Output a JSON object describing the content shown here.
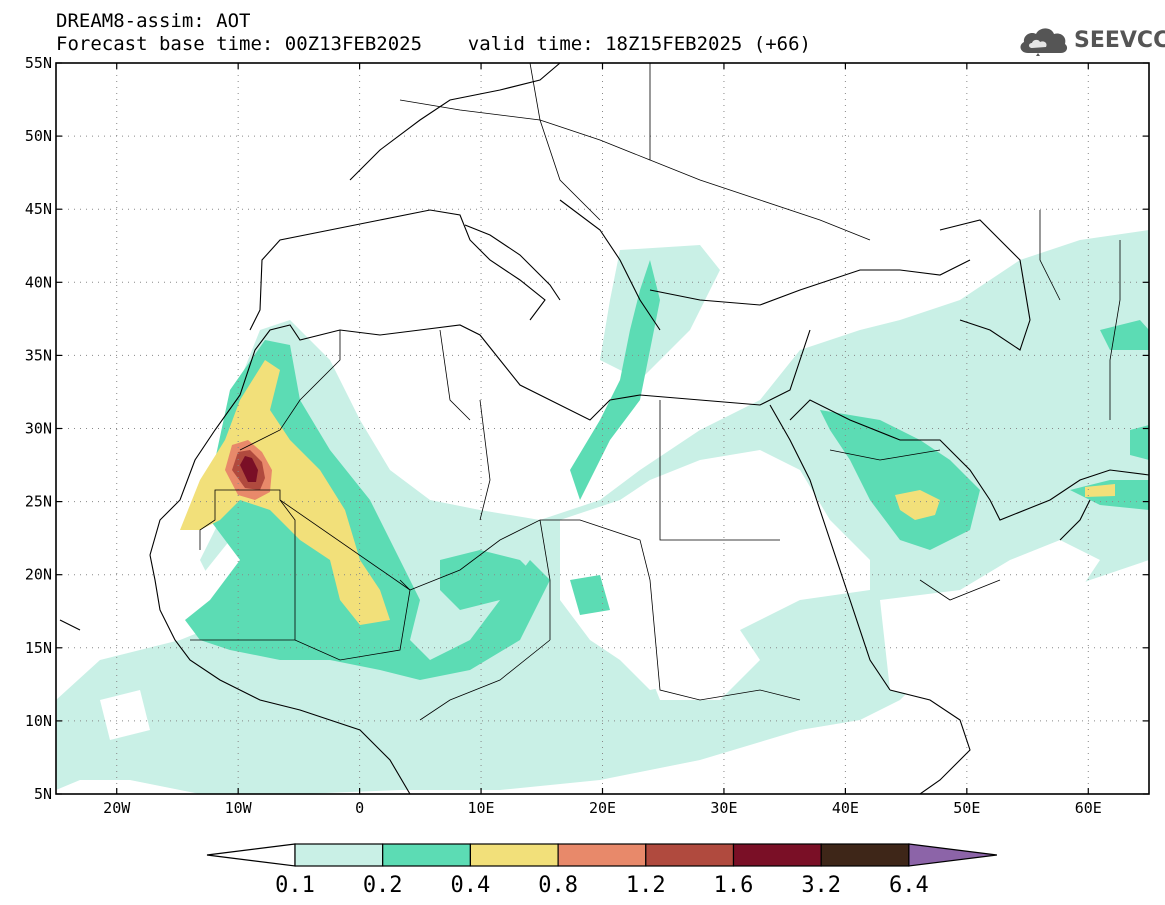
{
  "header": {
    "title_line1": "DREAM8-assim: AOT",
    "title_line2": "Forecast base time: 00Z13FEB2025    valid time: 18Z15FEB2025 (+66)"
  },
  "logo": {
    "text": "SEEVCCC",
    "icon": "cloud-icon"
  },
  "map": {
    "lon_range": [
      -25,
      65
    ],
    "lat_range": [
      5,
      55
    ],
    "lon_ticks": [
      {
        "lon": -20,
        "label": "20W"
      },
      {
        "lon": -10,
        "label": "10W"
      },
      {
        "lon": 0,
        "label": "0"
      },
      {
        "lon": 10,
        "label": "10E"
      },
      {
        "lon": 20,
        "label": "20E"
      },
      {
        "lon": 30,
        "label": "30E"
      },
      {
        "lon": 40,
        "label": "40E"
      },
      {
        "lon": 50,
        "label": "50E"
      },
      {
        "lon": 60,
        "label": "60E"
      }
    ],
    "lat_ticks": [
      {
        "lat": 55,
        "label": "55N"
      },
      {
        "lat": 50,
        "label": "50N"
      },
      {
        "lat": 45,
        "label": "45N"
      },
      {
        "lat": 40,
        "label": "40N"
      },
      {
        "lat": 35,
        "label": "35N"
      },
      {
        "lat": 30,
        "label": "30N"
      },
      {
        "lat": 25,
        "label": "25N"
      },
      {
        "lat": 20,
        "label": "20N"
      },
      {
        "lat": 15,
        "label": "15N"
      },
      {
        "lat": 10,
        "label": "10N"
      },
      {
        "lat": 5,
        "label": "5N"
      }
    ],
    "grid": true
  },
  "colorbar": {
    "labels": [
      "0.1",
      "0.2",
      "0.4",
      "0.8",
      "1.2",
      "1.6",
      "3.2",
      "6.4"
    ],
    "colors": [
      "#ffffff",
      "#c9f0e6",
      "#5cdcb4",
      "#f2e07a",
      "#e8896a",
      "#b04a3e",
      "#7a0f26",
      "#3e2618",
      "#8c64a8"
    ]
  }
}
